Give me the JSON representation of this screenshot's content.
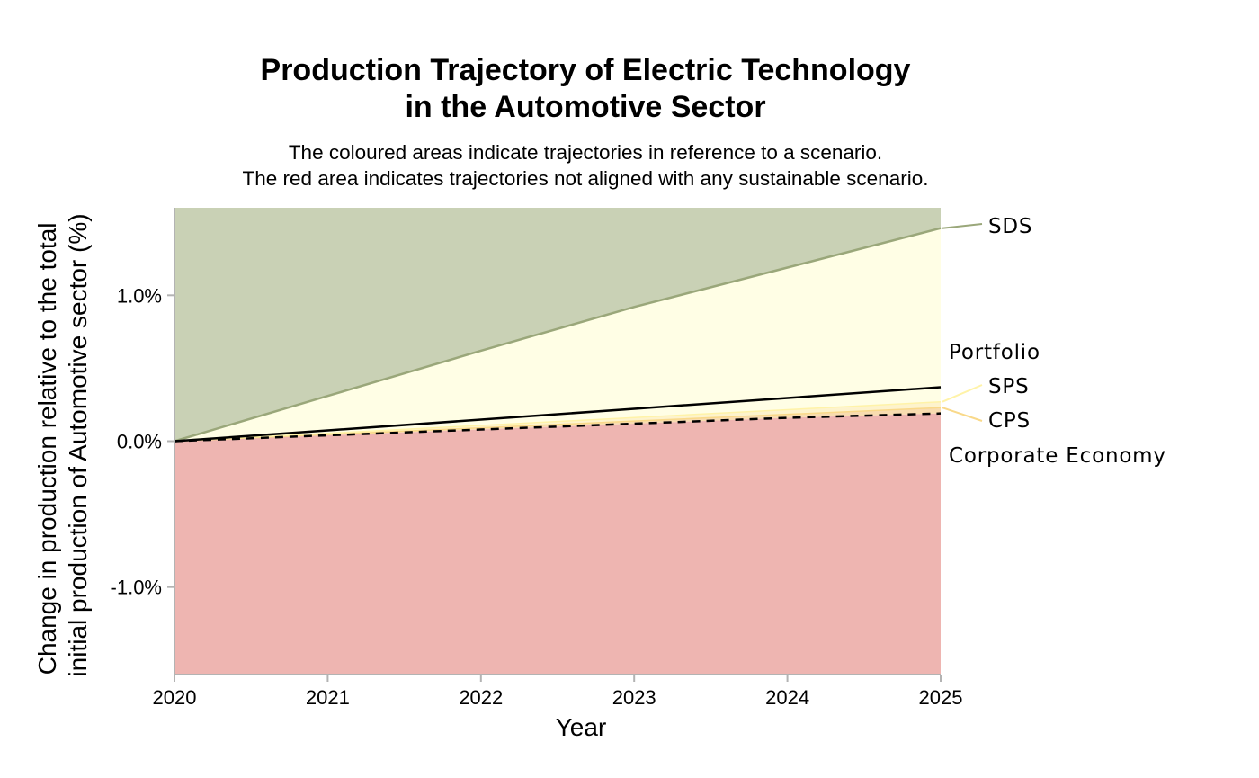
{
  "chart_data": {
    "type": "area",
    "title": [
      "Production Trajectory of Electric Technology",
      "in the Automotive Sector"
    ],
    "subtitle": [
      "The coloured areas indicate trajectories in reference to a scenario.",
      "The red area indicates trajectories not aligned with any sustainable scenario."
    ],
    "xlabel": "Year",
    "ylabel": [
      "Change in production relative to the total",
      "initial production of Automotive sector (%)"
    ],
    "x": [
      2020,
      2021,
      2022,
      2023,
      2024,
      2025
    ],
    "x_ticks": [
      "2020",
      "2021",
      "2022",
      "2023",
      "2024",
      "2025"
    ],
    "y_ticks": [
      {
        "value": -1.0,
        "label": "-1.0%"
      },
      {
        "value": 0.0,
        "label": "0.0%"
      },
      {
        "value": 1.0,
        "label": "1.0%"
      }
    ],
    "xlim": [
      2020,
      2025
    ],
    "ylim": [
      -1.6,
      1.6
    ],
    "grid": false,
    "bands": [
      {
        "name": "SDS",
        "color": "#c9d1b5",
        "line_color": "#9aa77a",
        "x": [
          2020,
          2021,
          2022,
          2023,
          2024,
          2025
        ],
        "values": [
          0.0,
          0.31,
          0.62,
          0.92,
          1.19,
          1.46
        ]
      },
      {
        "name": "SPS",
        "color": "#fffde6",
        "line_color": "#fff3a8",
        "x": [
          2020,
          2025
        ],
        "values": [
          0.0,
          0.27
        ]
      },
      {
        "name": "CPS",
        "color": "#fde9bd",
        "line_color": "#f9d98a",
        "x": [
          2020,
          2025
        ],
        "values": [
          0.0,
          0.23
        ]
      }
    ],
    "area_colors": {
      "above_sds": "#c9d1b5",
      "sds_to_sps": "#fffee5",
      "sps_to_cps": "#fdf3cd",
      "cps_to_corp": "#f8dcb0",
      "below": "#eeb5b1"
    },
    "series": [
      {
        "name": "Portfolio",
        "color": "#000000",
        "dash": "solid",
        "x": [
          2020,
          2025
        ],
        "values": [
          0.0,
          0.37
        ]
      },
      {
        "name": "Corporate Economy",
        "color": "#000000",
        "dash": "dashed",
        "x": [
          2020,
          2021,
          2022,
          2023,
          2024,
          2025
        ],
        "values": [
          0.0,
          0.04,
          0.08,
          0.12,
          0.16,
          0.19
        ]
      }
    ],
    "labels": [
      "SDS",
      "Portfolio",
      "SPS",
      "CPS",
      "Corporate Economy"
    ]
  }
}
